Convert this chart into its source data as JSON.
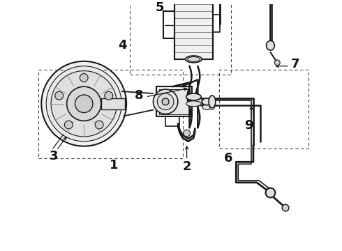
{
  "background_color": "#ffffff",
  "line_color": "#1a1a1a",
  "label_color": "#111111",
  "font_size": 13,
  "lw": 1.2,
  "lw_thin": 0.7,
  "lw_thick": 2.0,
  "dash_pattern": [
    3,
    3
  ]
}
